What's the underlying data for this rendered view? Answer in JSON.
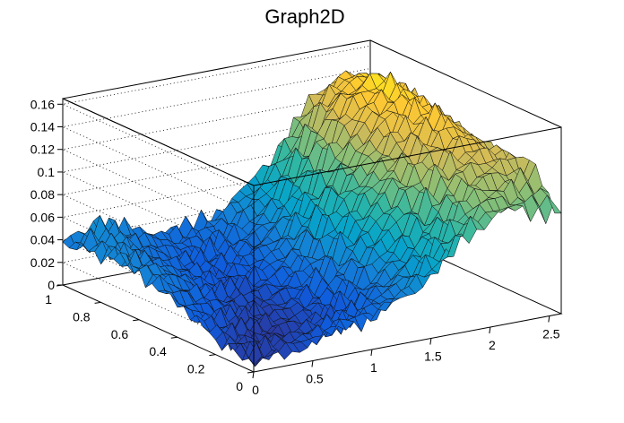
{
  "chart_data": {
    "type": "surface",
    "title": "Graph2D",
    "x_range": [
      0,
      2.6
    ],
    "y_range": [
      0,
      1
    ],
    "z_range": [
      0,
      0.165
    ],
    "x_ticks": [
      "0",
      "0.5",
      "1",
      "1.5",
      "2",
      "2.5"
    ],
    "x_tick_values": [
      0,
      0.5,
      1,
      1.5,
      2,
      2.5
    ],
    "y_ticks": [
      "0",
      "0.2",
      "0.4",
      "0.6",
      "0.8",
      "1"
    ],
    "y_tick_values": [
      0,
      0.2,
      0.4,
      0.6,
      0.8,
      1
    ],
    "z_ticks": [
      "0",
      "0.02",
      "0.04",
      "0.06",
      "0.08",
      "0.1",
      "0.12",
      "0.14",
      "0.16"
    ],
    "z_tick_values": [
      0,
      0.02,
      0.04,
      0.06,
      0.08,
      0.1,
      0.12,
      0.14,
      0.16
    ],
    "grid": true,
    "palette": [
      "#352a87",
      "#0f5cdd",
      "#1481d6",
      "#06a4ca",
      "#2eb7a4",
      "#87bf77",
      "#d1bb59",
      "#fec832",
      "#f9fb0e"
    ],
    "surface_grid_x": [
      0,
      0.26,
      0.52,
      0.78,
      1.04,
      1.3,
      1.56,
      1.82,
      2.08,
      2.34,
      2.6
    ],
    "surface_grid_y": [
      0,
      0.2,
      0.4,
      0.6,
      0.8,
      1
    ],
    "surface_z": [
      [
        0.006,
        0.01,
        0.018,
        0.025,
        0.03,
        0.042,
        0.06,
        0.085,
        0.1,
        0.095,
        0.092
      ],
      [
        0.016,
        0.008,
        0.006,
        0.012,
        0.018,
        0.03,
        0.055,
        0.08,
        0.11,
        0.12,
        0.122
      ],
      [
        0.028,
        0.02,
        0.012,
        0.01,
        0.02,
        0.036,
        0.065,
        0.1,
        0.125,
        0.14,
        0.118
      ],
      [
        0.044,
        0.035,
        0.022,
        0.016,
        0.022,
        0.04,
        0.07,
        0.1,
        0.135,
        0.148,
        0.126
      ],
      [
        0.045,
        0.04,
        0.028,
        0.022,
        0.024,
        0.032,
        0.06,
        0.1,
        0.14,
        0.155,
        0.13
      ],
      [
        0.035,
        0.05,
        0.04,
        0.032,
        0.03,
        0.04,
        0.055,
        0.085,
        0.12,
        0.14,
        0.125
      ]
    ]
  }
}
